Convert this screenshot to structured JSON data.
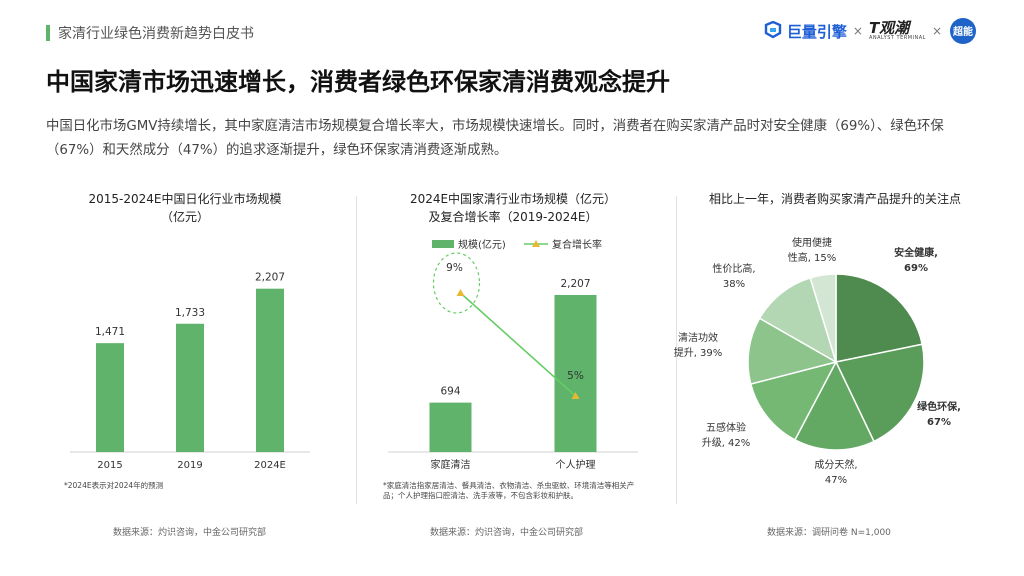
{
  "header": {
    "section_title": "家清行业绿色消费新趋势白皮书"
  },
  "logos": {
    "juliang": "巨量引擎",
    "sep1": "×",
    "tguan": "T观潮",
    "tguan_sub": "ANALYST TERMINAL",
    "sep2": "×",
    "chao": "超能"
  },
  "title": "中国家清市场迅速增长，消费者绿色环保家清消费观念提升",
  "intro": "中国日化市场GMV持续增长，其中家庭清洁市场规模复合增长率大，市场规模快速增长。同时，消费者在购买家清产品时对安全健康（69%）、绿色环保（67%）和天然成分（47%）的追求逐渐提升，绿色环保家清消费逐渐成熟。",
  "colors": {
    "accent": "#5fb36b",
    "line": "#66cc66",
    "marker": "#e8b830",
    "pie": [
      "#4f8a4f",
      "#5a9c5a",
      "#63a863",
      "#74b874",
      "#8cc48c",
      "#b3d6b3",
      "#d3e6d3"
    ]
  },
  "chart_data": [
    {
      "type": "bar",
      "title": "2015-2024E中国日化行业市场规模",
      "title_line2": "（亿元）",
      "categories": [
        "2015",
        "2019",
        "2024E"
      ],
      "values": [
        1471,
        1733,
        2207
      ],
      "value_labels": [
        "1,471",
        "1,733",
        "2,207"
      ],
      "ylim": [
        0,
        2500
      ],
      "grid": false,
      "note": "*2024E表示对2024年的预测",
      "source": "数据来源：灼识咨询，中金公司研究部"
    },
    {
      "type": "bar",
      "title": "2024E中国家清行业市场规模（亿元）",
      "title_line2": "及复合增长率（2019-2024E）",
      "categories": [
        "家庭清洁",
        "个人护理"
      ],
      "series": [
        {
          "name": "规模(亿元)",
          "values": [
            694,
            2207
          ],
          "value_labels": [
            "694",
            "2,207"
          ]
        },
        {
          "name": "复合增长率",
          "values": [
            9,
            5
          ],
          "value_labels": [
            "9%",
            "5%"
          ]
        }
      ],
      "ylim": [
        0,
        2600
      ],
      "legend": "top",
      "note": "*家庭清洁指家居清洁、餐具清洁、衣物清洁、杀虫驱蚊、环境清洁等相关产品；个人护理指口腔清洁、洗手液等，不包含彩妆和护肤。",
      "source": "数据来源：灼识咨询，中金公司研究部"
    },
    {
      "type": "pie",
      "title": "相比上一年，消费者购买家清产品提升的关注点",
      "slices": [
        {
          "line1": "安全健康,",
          "line2": "69%",
          "value": 69
        },
        {
          "line1": "绿色环保,",
          "line2": "67%",
          "value": 67
        },
        {
          "line1": "成分天然,",
          "line2": "47%",
          "value": 47
        },
        {
          "line1": "五感体验",
          "line2": "升级, 42%",
          "value": 42
        },
        {
          "line1": "清洁功效",
          "line2": "提升, 39%",
          "value": 39
        },
        {
          "line1": "性价比高,",
          "line2": "38%",
          "value": 38
        },
        {
          "line1": "使用便捷",
          "line2": "性高, 15%",
          "value": 15
        }
      ],
      "source": "数据来源：调研问卷 N=1,000"
    }
  ]
}
